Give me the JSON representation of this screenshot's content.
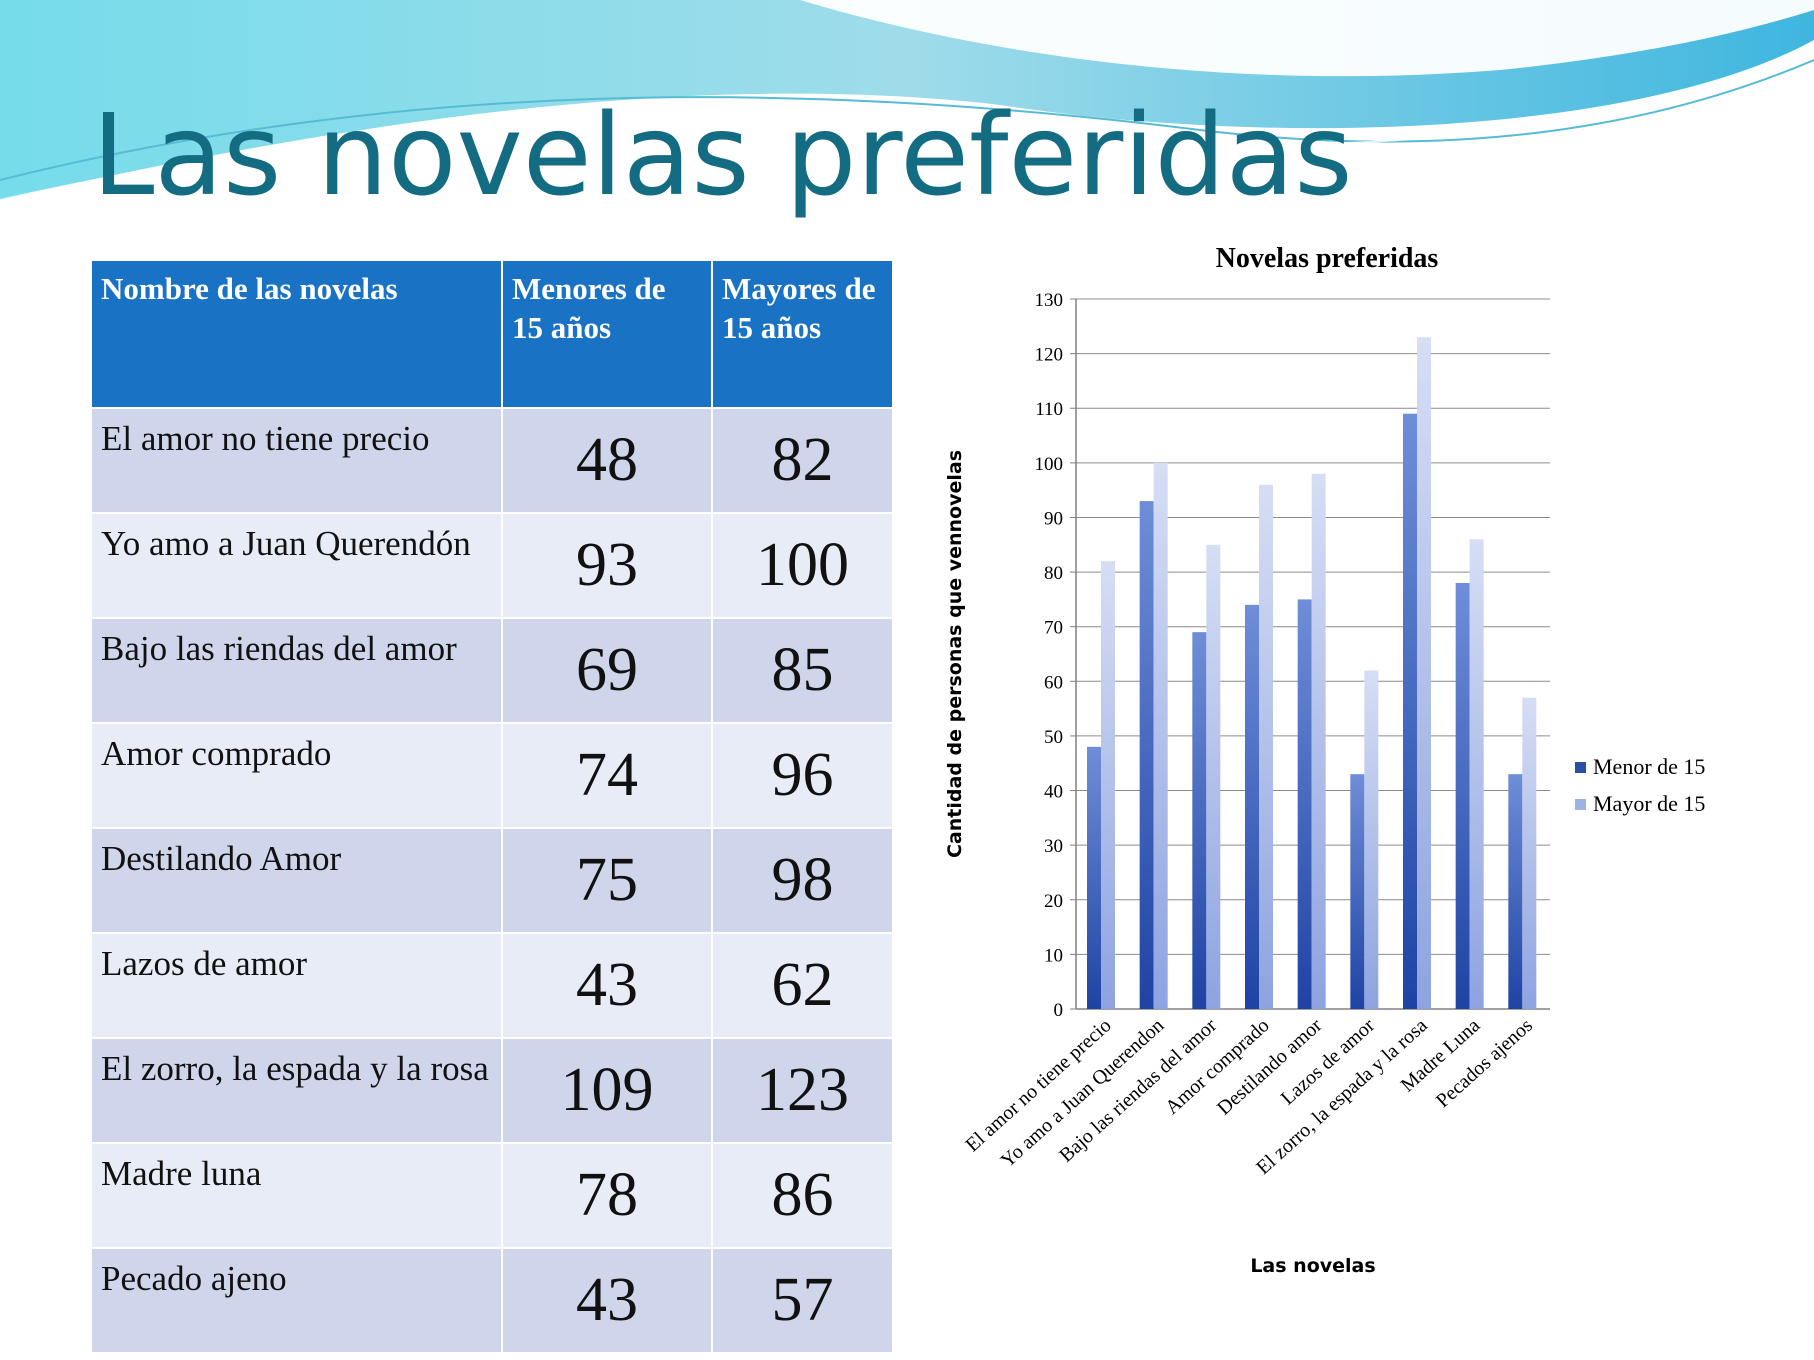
{
  "slide": {
    "title": "Las novelas preferidas"
  },
  "table": {
    "headers": [
      "Nombre de las novelas",
      "Menores de 15 años",
      "Mayores de 15 años"
    ],
    "rows": [
      {
        "name": "El amor no tiene precio",
        "menores": "48",
        "mayores": "82"
      },
      {
        "name": "Yo amo a Juan Querendón",
        "menores": "93",
        "mayores": "100"
      },
      {
        "name": "Bajo las riendas del amor",
        "menores": "69",
        "mayores": "85"
      },
      {
        "name": "Amor comprado",
        "menores": "74",
        "mayores": "96"
      },
      {
        "name": "Destilando Amor",
        "menores": "75",
        "mayores": "98"
      },
      {
        "name": "Lazos de amor",
        "menores": "43",
        "mayores": "62"
      },
      {
        "name": "El zorro, la espada y la rosa",
        "menores": "109",
        "mayores": "123"
      },
      {
        "name": "Madre luna",
        "menores": "78",
        "mayores": "86"
      },
      {
        "name": "Pecado ajeno",
        "menores": "43",
        "mayores": "57"
      }
    ]
  },
  "chart_data": {
    "type": "bar",
    "title": "Novelas preferidas",
    "xlabel": "Las novelas",
    "ylabel": "Cantidad de personas que vennovelas",
    "categories": [
      "El amor no tiene precio",
      "Yo amo a Juan Querendon",
      "Bajo las riendas del amor",
      "Amor comprado",
      "Destilando amor",
      "Lazos de amor",
      "El zorro, la espada y la rosa",
      "Madre Luna",
      "Pecados ajenos"
    ],
    "series": [
      {
        "name": "Menor de 15",
        "values": [
          48,
          93,
          69,
          74,
          75,
          43,
          109,
          78,
          43
        ],
        "color": "#2a4fa8"
      },
      {
        "name": "Mayor de 15",
        "values": [
          82,
          100,
          85,
          96,
          98,
          62,
          123,
          86,
          57
        ],
        "color": "#9fb2e6"
      }
    ],
    "ylim": [
      0,
      130
    ],
    "yticks": [
      "0",
      "10",
      "20",
      "30",
      "40",
      "50",
      "60",
      "70",
      "80",
      "90",
      "100",
      "110",
      "120",
      "130"
    ],
    "grid": true,
    "legend_position": "right"
  }
}
